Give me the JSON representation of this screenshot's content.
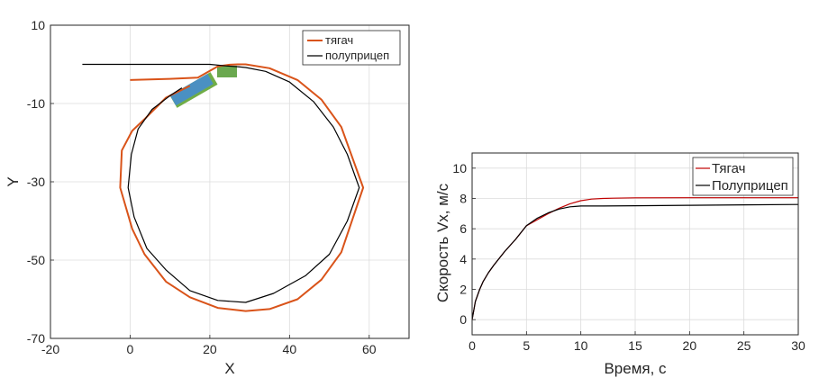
{
  "chart_data": [
    {
      "type": "line",
      "xlabel": "X",
      "ylabel": "Y",
      "xlim": [
        -20,
        70
      ],
      "ylim": [
        -70,
        10
      ],
      "xticks": [
        "-20",
        "0",
        "20",
        "40",
        "60"
      ],
      "yticks": [
        "10",
        "-10",
        "-30",
        "-50",
        "-70"
      ],
      "grid": true,
      "legend_position": "top-right",
      "series": [
        {
          "name": "тягач",
          "color": "#d95319",
          "x": [
            0,
            10,
            17,
            22,
            25,
            27,
            29,
            35,
            42,
            48,
            53,
            58.5,
            53,
            48,
            42,
            35,
            29,
            22,
            15,
            9,
            3.6,
            0.5,
            -2.5,
            -2.1,
            0.5,
            3.6,
            9,
            15
          ],
          "y": [
            -4.0,
            -3.7,
            -3.4,
            -0.5,
            -0.1,
            0.0,
            0.0,
            -1.0,
            -4.0,
            -9.0,
            -16.0,
            -31.5,
            -48.0,
            -55.0,
            -60.0,
            -62.5,
            -63.0,
            -62.2,
            -59.5,
            -55.5,
            -48.5,
            -42.0,
            -31.5,
            -22.0,
            -17.0,
            -14.0,
            -8.5,
            -5.5
          ]
        },
        {
          "name": "полуприцеп",
          "color": "#000000",
          "x": [
            -12,
            0,
            10,
            20,
            24,
            27,
            29,
            34,
            40,
            46,
            51,
            54.5,
            57.5,
            54.5,
            50,
            44,
            36,
            29,
            22,
            15,
            9,
            4.2,
            1.0,
            -0.5,
            0.3,
            2.0,
            5.5,
            10,
            13
          ],
          "y": [
            0.0,
            0.0,
            0.0,
            0.0,
            -0.4,
            -0.6,
            -0.8,
            -1.8,
            -4.5,
            -9.5,
            -16.0,
            -23.0,
            -31.5,
            -40.0,
            -48.5,
            -54.0,
            -58.5,
            -60.8,
            -60.3,
            -57.8,
            -52.5,
            -47.0,
            -39.0,
            -31.5,
            -23.0,
            -16.5,
            -11.5,
            -8.0,
            -6.0
          ]
        }
      ]
    },
    {
      "type": "line",
      "xlabel": "Время, с",
      "ylabel": "Скорость Vx, м/с",
      "xlim": [
        0,
        30
      ],
      "ylim": [
        -1,
        11
      ],
      "xticks": [
        "0",
        "5",
        "10",
        "15",
        "20",
        "25",
        "30"
      ],
      "yticks": [
        "0",
        "2",
        "4",
        "6",
        "8",
        "10"
      ],
      "grid": true,
      "legend_position": "top-right",
      "series": [
        {
          "name": "Тягач",
          "color": "#c00000",
          "x": [
            0,
            0.3,
            0.7,
            1,
            1.5,
            2,
            3,
            4,
            5,
            6,
            7,
            8,
            9,
            10,
            11,
            12,
            13,
            15,
            20,
            25,
            30
          ],
          "y": [
            0,
            1.2,
            2.0,
            2.5,
            3.1,
            3.6,
            4.5,
            5.3,
            6.2,
            6.6,
            7.0,
            7.35,
            7.65,
            7.85,
            7.96,
            8.0,
            8.02,
            8.04,
            8.05,
            8.05,
            8.05
          ]
        },
        {
          "name": "Полуприцеп",
          "color": "#000000",
          "x": [
            0,
            0.3,
            0.7,
            1,
            1.5,
            2,
            3,
            4,
            5,
            6,
            7,
            8,
            9,
            10,
            11,
            12,
            15,
            20,
            25,
            30
          ],
          "y": [
            0,
            1.2,
            2.0,
            2.5,
            3.1,
            3.6,
            4.5,
            5.3,
            6.2,
            6.7,
            7.05,
            7.3,
            7.45,
            7.5,
            7.5,
            7.5,
            7.52,
            7.55,
            7.58,
            7.6
          ]
        }
      ]
    }
  ]
}
